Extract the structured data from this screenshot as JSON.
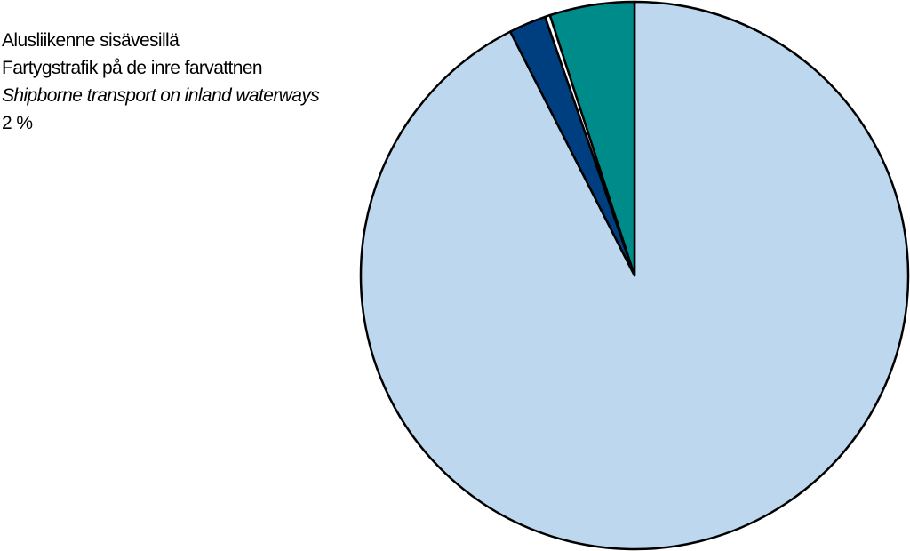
{
  "chart_data": {
    "type": "pie",
    "start": "top",
    "direction": "clockwise",
    "slices": [
      {
        "value": 92.5,
        "color": "#bdd7ee"
      },
      {
        "value": 2.2,
        "color": "#003f7f"
      },
      {
        "value": 0.3,
        "color": "#ffffff"
      },
      {
        "value": 5.0,
        "color": "#008b8b"
      }
    ],
    "annotation": {
      "line_fi": "Alusliikenne sisävesillä",
      "line_sv": "Fartygstrafik på de inre farvattnen",
      "line_en": "Shipborne transport on inland waterways",
      "value": "2 %"
    },
    "colors": {
      "outline": "#000000"
    }
  }
}
